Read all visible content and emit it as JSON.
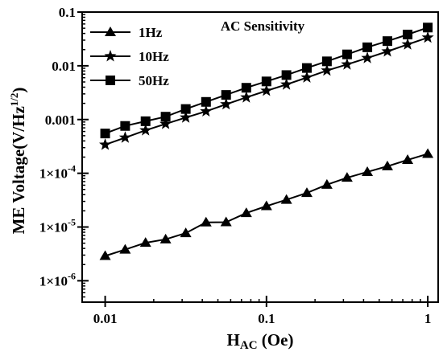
{
  "chart_data": {
    "type": "line",
    "title": "AC Sensitivity",
    "xlabel": {
      "main": "H",
      "sub": "AC",
      "tail": " (Oe)"
    },
    "ylabel": {
      "main": "ME Voltage(V/Hz",
      "sup": "1/2",
      "tail": ")"
    },
    "x_scale": "log",
    "y_scale": "log",
    "xlim": [
      0.0072,
      1.16
    ],
    "ylim": [
      4e-07,
      0.1
    ],
    "x_ticks": [
      {
        "value": 0.01,
        "label": "0.01"
      },
      {
        "value": 0.1,
        "label": "0.1"
      },
      {
        "value": 1,
        "label": "1"
      }
    ],
    "y_ticks": [
      {
        "value": 1e-06,
        "base": "1×10",
        "exp": "-6"
      },
      {
        "value": 1e-05,
        "base": "1×10",
        "exp": "-5"
      },
      {
        "value": 0.0001,
        "base": "1×10",
        "exp": "-4"
      },
      {
        "value": 0.001,
        "label": "0.001"
      },
      {
        "value": 0.01,
        "label": "0.01"
      },
      {
        "value": 0.1,
        "label": "0.1"
      }
    ],
    "legend_position": "top-left",
    "x": [
      0.01,
      0.0133,
      0.0178,
      0.0237,
      0.0316,
      0.0422,
      0.0562,
      0.075,
      0.1,
      0.133,
      0.178,
      0.237,
      0.316,
      0.422,
      0.562,
      0.75,
      1.0
    ],
    "series": [
      {
        "name": "1Hz",
        "marker": "triangle",
        "values": [
          2.9e-06,
          3.8e-06,
          5.1e-06,
          5.9e-06,
          7.7e-06,
          1.22e-05,
          1.23e-05,
          1.82e-05,
          2.45e-05,
          3.21e-05,
          4.31e-05,
          6.13e-05,
          8.26e-05,
          0.000106,
          0.000135,
          0.000177,
          0.00023
        ]
      },
      {
        "name": "10Hz",
        "marker": "star",
        "values": [
          0.00034,
          0.00046,
          0.00063,
          0.00083,
          0.00109,
          0.00142,
          0.00192,
          0.00258,
          0.00343,
          0.00448,
          0.00605,
          0.00815,
          0.01059,
          0.01395,
          0.0185,
          0.025,
          0.0335
        ]
      },
      {
        "name": "50Hz",
        "marker": "square",
        "values": [
          0.00055,
          0.00076,
          0.00093,
          0.00113,
          0.00157,
          0.00213,
          0.00287,
          0.0039,
          0.00512,
          0.00672,
          0.0091,
          0.0121,
          0.0163,
          0.0221,
          0.0288,
          0.0382,
          0.0515
        ]
      }
    ]
  }
}
